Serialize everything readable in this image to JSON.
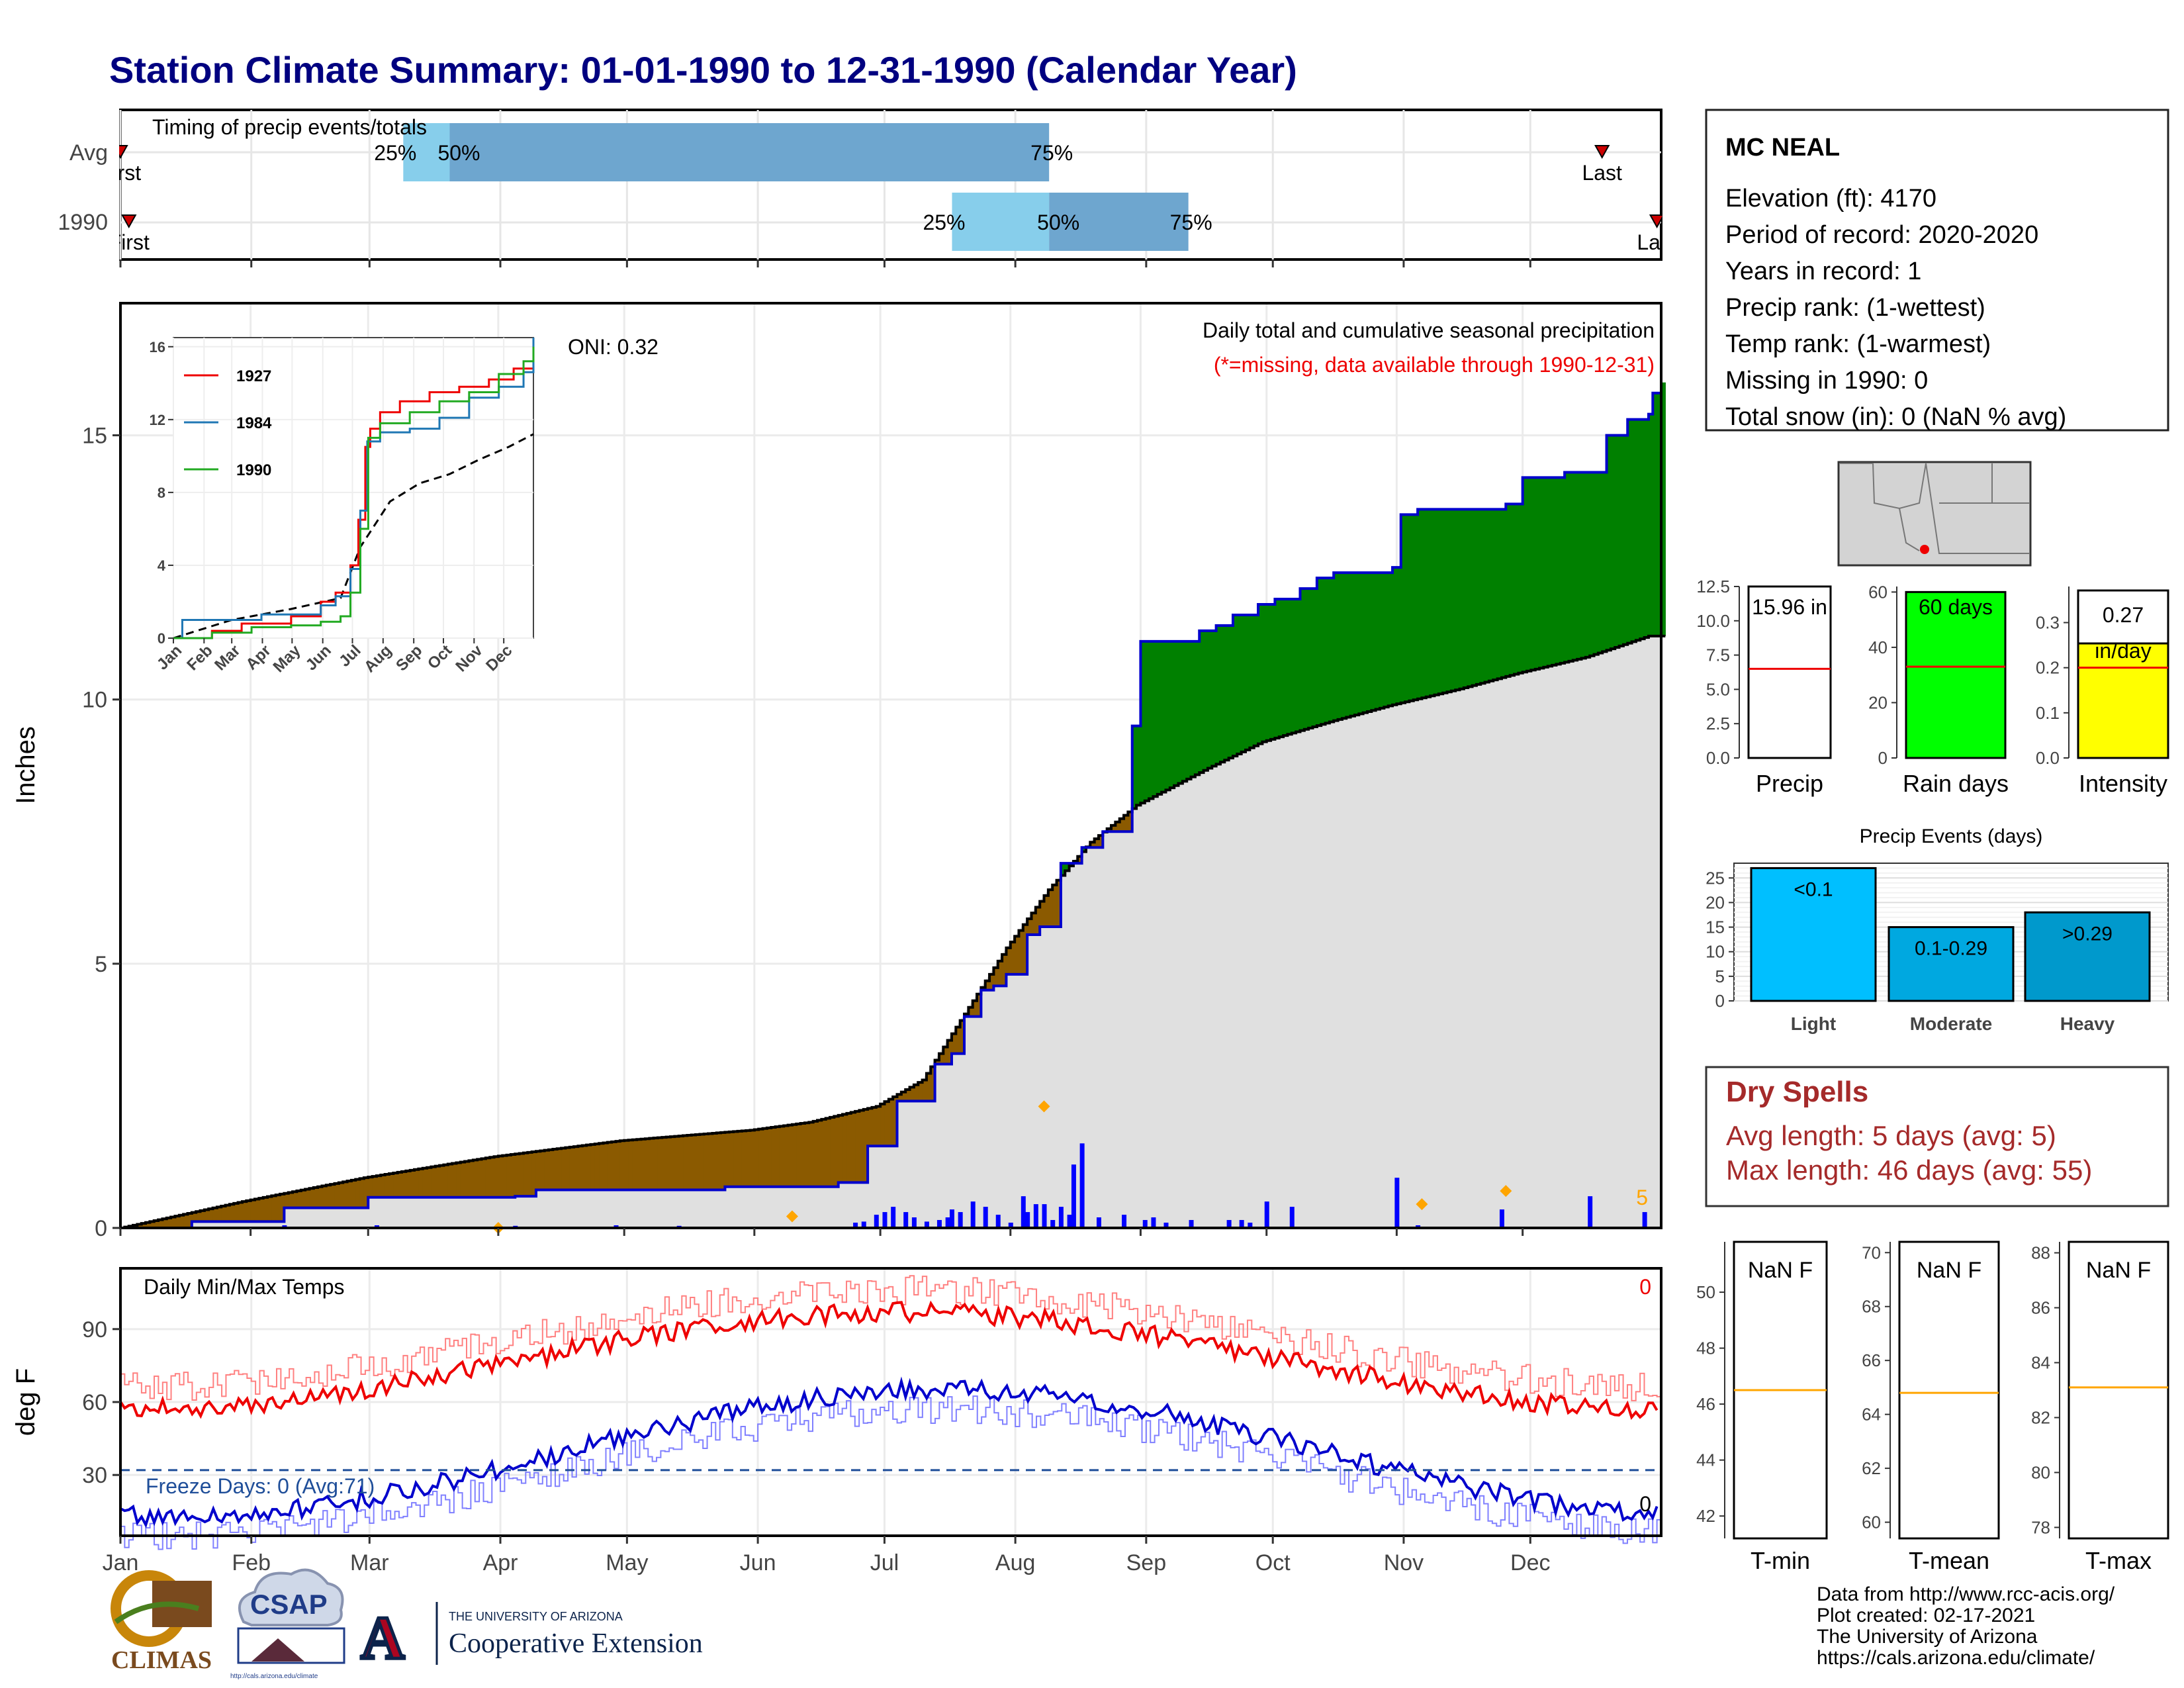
{
  "title": "Station Climate Summary: 01-01-1990 to 12-31-1990 (Calendar Year)",
  "colors": {
    "title": "#000080",
    "cum_fill_above": "#008000",
    "cum_fill_below": "#8B5A00",
    "avg_fill": "#e0e0e0",
    "precip_line": "#0000cc",
    "tmax": "#ee0000",
    "tmin": "#0000cc",
    "missing": "#ee0000",
    "dry": "#a52a2a",
    "event_bar": "#00bfff",
    "raindays_bar": "#00ff00",
    "intensity_bar": "#ffff00",
    "marker": "#ffa500"
  },
  "timing": {
    "label": "Timing of precip events/totals",
    "rows": [
      {
        "name": "Avg",
        "first_label": "First",
        "last_label": "Last",
        "first_doy": 1,
        "last_doy": 352,
        "p25": 68,
        "p50": 79,
        "p75": 221
      },
      {
        "name": "1990",
        "first_label": "First",
        "last_label": "Last",
        "first_doy": 3,
        "last_doy": 365,
        "p25": 198,
        "p50": 221,
        "p75": 254
      }
    ],
    "pct_labels": [
      "25%",
      "50%",
      "75%"
    ]
  },
  "main": {
    "ylabel": "Inches",
    "ylim": [
      0,
      17.5
    ],
    "yticks": [
      0,
      5,
      10,
      15
    ],
    "oni": "ONI: 0.32",
    "annot_title": "Daily total and cumulative seasonal precipitation",
    "annot_missing": "(*=missing, data available through 1990-12-31)",
    "daily_max_count": "5",
    "cumulative_1990": [
      [
        1,
        0
      ],
      [
        18,
        0.12
      ],
      [
        40,
        0.38
      ],
      [
        60,
        0.58
      ],
      [
        95,
        0.6
      ],
      [
        100,
        0.72
      ],
      [
        120,
        0.72
      ],
      [
        145,
        0.78
      ],
      [
        172,
        0.86
      ],
      [
        175,
        0.86
      ],
      [
        179,
        1.55
      ],
      [
        186,
        2.4
      ],
      [
        195,
        3.1
      ],
      [
        199,
        3.3
      ],
      [
        202,
        4.0
      ],
      [
        206,
        4.5
      ],
      [
        209,
        4.58
      ],
      [
        212,
        4.8
      ],
      [
        217,
        5.55
      ],
      [
        220,
        5.7
      ],
      [
        225,
        6.9
      ],
      [
        230,
        7.2
      ],
      [
        235,
        7.5
      ],
      [
        242,
        9.5
      ],
      [
        244,
        11.1
      ],
      [
        247,
        11.1
      ],
      [
        252,
        11.1
      ],
      [
        258,
        11.3
      ],
      [
        262,
        11.4
      ],
      [
        266,
        11.6
      ],
      [
        272,
        11.8
      ],
      [
        276,
        11.9
      ],
      [
        282,
        12.1
      ],
      [
        286,
        12.3
      ],
      [
        290,
        12.4
      ],
      [
        304,
        12.5
      ],
      [
        306,
        13.5
      ],
      [
        310,
        13.6
      ],
      [
        331,
        13.7
      ],
      [
        335,
        14.2
      ],
      [
        345,
        14.3
      ],
      [
        355,
        15.0
      ],
      [
        360,
        15.3
      ],
      [
        365,
        15.4
      ],
      [
        366,
        15.8
      ],
      [
        368,
        16.0
      ]
    ],
    "avg_cumulative": [
      [
        1,
        0
      ],
      [
        30,
        0.5
      ],
      [
        59,
        0.95
      ],
      [
        90,
        1.35
      ],
      [
        120,
        1.65
      ],
      [
        151,
        1.85
      ],
      [
        165,
        2.0
      ],
      [
        181,
        2.3
      ],
      [
        192,
        2.8
      ],
      [
        200,
        3.8
      ],
      [
        212,
        5.3
      ],
      [
        222,
        6.4
      ],
      [
        232,
        7.3
      ],
      [
        243,
        8.0
      ],
      [
        260,
        8.7
      ],
      [
        273,
        9.2
      ],
      [
        290,
        9.6
      ],
      [
        304,
        9.9
      ],
      [
        320,
        10.2
      ],
      [
        334,
        10.5
      ],
      [
        350,
        10.8
      ],
      [
        365,
        11.2
      ]
    ],
    "daily_precip": [
      [
        40,
        0.05
      ],
      [
        62,
        0.05
      ],
      [
        95,
        0.04
      ],
      [
        119,
        0.05
      ],
      [
        134,
        0.04
      ],
      [
        176,
        0.1
      ],
      [
        178,
        0.12
      ],
      [
        181,
        0.25
      ],
      [
        183,
        0.3
      ],
      [
        185,
        0.4
      ],
      [
        188,
        0.3
      ],
      [
        190,
        0.2
      ],
      [
        193,
        0.12
      ],
      [
        196,
        0.15
      ],
      [
        198,
        0.2
      ],
      [
        199,
        0.35
      ],
      [
        201,
        0.3
      ],
      [
        204,
        0.5
      ],
      [
        207,
        0.4
      ],
      [
        210,
        0.25
      ],
      [
        213,
        0.1
      ],
      [
        216,
        0.6
      ],
      [
        217,
        0.3
      ],
      [
        219,
        0.45
      ],
      [
        221,
        0.45
      ],
      [
        223,
        0.15
      ],
      [
        225,
        0.4
      ],
      [
        227,
        0.25
      ],
      [
        228,
        1.2
      ],
      [
        230,
        1.6
      ],
      [
        234,
        0.2
      ],
      [
        240,
        0.25
      ],
      [
        245,
        0.15
      ],
      [
        247,
        0.2
      ],
      [
        250,
        0.1
      ],
      [
        256,
        0.15
      ],
      [
        265,
        0.15
      ],
      [
        268,
        0.15
      ],
      [
        270,
        0.1
      ],
      [
        274,
        0.5
      ],
      [
        280,
        0.4
      ],
      [
        305,
        0.95
      ],
      [
        310,
        0.05
      ],
      [
        330,
        0.35
      ],
      [
        351,
        0.6
      ],
      [
        364,
        0.3
      ]
    ],
    "orange_markers": [
      [
        91,
        0
      ],
      [
        161,
        0.22
      ],
      [
        221,
        2.3
      ],
      [
        311,
        0.45
      ],
      [
        331,
        0.7
      ]
    ]
  },
  "inset": {
    "yticks": [
      0,
      4,
      8,
      12,
      16
    ],
    "ylim": [
      0,
      16.5
    ],
    "xlabels": [
      "Jan",
      "Feb",
      "Mar",
      "Apr",
      "May",
      "Jun",
      "Jul",
      "Aug",
      "Sep",
      "Oct",
      "Nov",
      "Dec"
    ],
    "series": [
      {
        "name": "1927",
        "color": "#ee0000",
        "points": [
          [
            1,
            0
          ],
          [
            40,
            0.4
          ],
          [
            70,
            0.8
          ],
          [
            120,
            1.2
          ],
          [
            150,
            2.0
          ],
          [
            165,
            2.5
          ],
          [
            180,
            4.0
          ],
          [
            188,
            6.5
          ],
          [
            195,
            10.5
          ],
          [
            200,
            11.5
          ],
          [
            210,
            12.4
          ],
          [
            230,
            13.0
          ],
          [
            260,
            13.5
          ],
          [
            290,
            13.8
          ],
          [
            320,
            14.2
          ],
          [
            345,
            14.8
          ],
          [
            365,
            16.0
          ]
        ]
      },
      {
        "name": "1984",
        "color": "#1f77b4",
        "points": [
          [
            1,
            0
          ],
          [
            10,
            1.0
          ],
          [
            60,
            1.0
          ],
          [
            90,
            1.3
          ],
          [
            130,
            1.3
          ],
          [
            150,
            1.8
          ],
          [
            165,
            2.3
          ],
          [
            180,
            3.8
          ],
          [
            190,
            7.0
          ],
          [
            197,
            10.8
          ],
          [
            210,
            11.3
          ],
          [
            240,
            11.5
          ],
          [
            270,
            12.1
          ],
          [
            300,
            13.2
          ],
          [
            330,
            13.8
          ],
          [
            355,
            14.6
          ],
          [
            365,
            16.5
          ]
        ]
      },
      {
        "name": "1990",
        "color": "#22aa22",
        "points": [
          [
            1,
            0
          ],
          [
            40,
            0.3
          ],
          [
            80,
            0.6
          ],
          [
            120,
            0.7
          ],
          [
            150,
            0.9
          ],
          [
            170,
            1.2
          ],
          [
            180,
            2.5
          ],
          [
            190,
            6.0
          ],
          [
            198,
            11.0
          ],
          [
            210,
            11.8
          ],
          [
            240,
            12.4
          ],
          [
            270,
            13.0
          ],
          [
            300,
            13.5
          ],
          [
            330,
            14.5
          ],
          [
            355,
            15.2
          ],
          [
            365,
            16.0
          ]
        ]
      }
    ],
    "avg_points": [
      [
        1,
        0
      ],
      [
        60,
        1.0
      ],
      [
        120,
        1.6
      ],
      [
        170,
        2.2
      ],
      [
        190,
        5.0
      ],
      [
        220,
        7.5
      ],
      [
        250,
        8.5
      ],
      [
        280,
        9.0
      ],
      [
        310,
        9.8
      ],
      [
        340,
        10.5
      ],
      [
        365,
        11.2
      ]
    ]
  },
  "temp": {
    "ylabel": "deg F",
    "title": "Daily Min/Max Temps",
    "yticks": [
      30,
      60,
      90
    ],
    "ylim": [
      5,
      115
    ],
    "freeze_text": "Freeze Days: 0 (Avg:71)",
    "freeze_line": 32,
    "count_max": "0",
    "count_min": "0",
    "months": [
      "Jan",
      "Feb",
      "Mar",
      "Apr",
      "May",
      "Jun",
      "Jul",
      "Aug",
      "Sep",
      "Oct",
      "Nov",
      "Dec"
    ]
  },
  "station": {
    "name": "MC NEAL",
    "lines": [
      "Elevation (ft): 4170",
      "Period of record: 2020-2020",
      "Years in record: 1",
      "Precip rank:  (1-wettest)",
      "Temp rank:  (1-warmest)",
      "Missing in 1990: 0",
      "Total snow (in): 0 (NaN % avg)"
    ]
  },
  "bar_panels": [
    {
      "name": "Precip",
      "label": "15.96 in",
      "value": 15.96,
      "avg": 6.5,
      "ylim": [
        0,
        12.5
      ],
      "yticks": [
        "0.0",
        "2.5",
        "5.0",
        "7.5",
        "10.0",
        "12.5"
      ],
      "tickvals": [
        0,
        2.5,
        5,
        7.5,
        10,
        12.5
      ],
      "color": "#ffffff"
    },
    {
      "name": "Rain days",
      "label": "60 days",
      "value": 60,
      "avg": 33,
      "ylim": [
        0,
        62
      ],
      "yticks": [
        "0",
        "20",
        "40",
        "60"
      ],
      "tickvals": [
        0,
        20,
        40,
        60
      ],
      "color": "#00ff00"
    },
    {
      "name": "Intensity",
      "label_top": "0.27",
      "label_bot": "in/day",
      "value": 0.27,
      "avg": 0.2,
      "ylim": [
        0,
        0.38
      ],
      "yticks": [
        "0.0",
        "0.1",
        "0.2",
        "0.3"
      ],
      "tickvals": [
        0,
        0.1,
        0.2,
        0.3
      ],
      "color": "#ffff00"
    }
  ],
  "events": {
    "title": "Precip Events (days)",
    "yticks": [
      0,
      5,
      10,
      15,
      20,
      25
    ],
    "ylim": [
      0,
      28
    ],
    "bars": [
      {
        "label": "<0.1",
        "category": "Light",
        "value": 27,
        "color": "#00bfff"
      },
      {
        "label": "0.1-0.29",
        "category": "Moderate",
        "value": 15,
        "color": "#00a8e0"
      },
      {
        "label": ">0.29",
        "category": "Heavy",
        "value": 18,
        "color": "#0099cc"
      }
    ]
  },
  "dry_spells": {
    "title": "Dry Spells",
    "avg_line": "Avg length: 5 days (avg: 5)",
    "max_line": "Max length: 46 days (avg: 55)"
  },
  "temp_panels": [
    {
      "name": "T-min",
      "label": "NaN F",
      "avg": 46.5,
      "ylim": [
        41.2,
        51.8
      ],
      "yticks": [
        42,
        44,
        46,
        48,
        50
      ]
    },
    {
      "name": "T-mean",
      "label": "NaN F",
      "avg": 64.8,
      "ylim": [
        59.4,
        70.4
      ],
      "yticks": [
        60,
        62,
        64,
        66,
        68,
        70
      ]
    },
    {
      "name": "T-max",
      "label": "NaN F",
      "avg": 83.1,
      "ylim": [
        77.6,
        88.4
      ],
      "yticks": [
        78,
        80,
        82,
        84,
        86,
        88
      ]
    }
  ],
  "footer": {
    "lines": [
      "Data from http://www.rcc-acis.org/",
      "Plot created: 02-17-2021",
      "The University of Arizona",
      "https://cals.arizona.edu/climate/"
    ],
    "logos": {
      "climas": "CLIMAS",
      "csap": "CSAP",
      "csap_url": "http://cals.arizona.edu/climate",
      "ua_small": "THE UNIVERSITY OF ARIZONA",
      "ua_big": "Cooperative Extension"
    }
  }
}
